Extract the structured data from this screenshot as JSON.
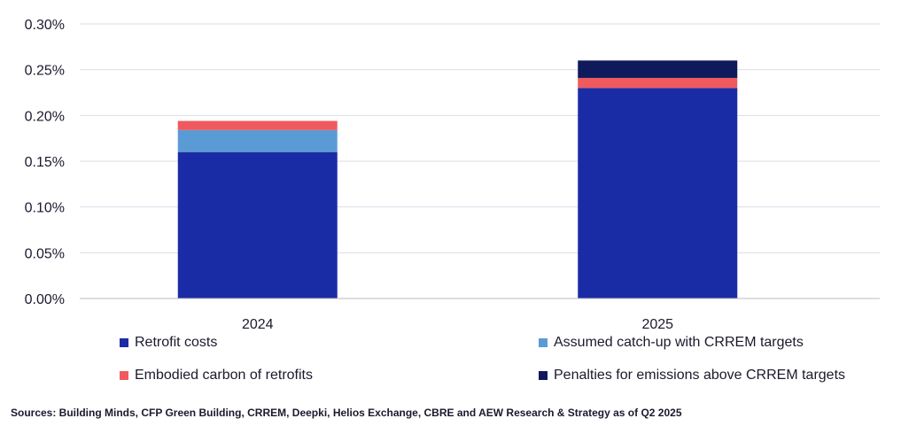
{
  "chart_data": {
    "type": "bar",
    "stacked": true,
    "categories": [
      "2024",
      "2025"
    ],
    "series": [
      {
        "name": "Retrofit costs",
        "values": [
          0.16,
          0.23
        ],
        "color": "#1a2ca5"
      },
      {
        "name": "Assumed catch-up with CRREM targets",
        "values": [
          0.024,
          0.0
        ],
        "color": "#5b9bd5"
      },
      {
        "name": "Embodied carbon of retrofits",
        "values": [
          0.01,
          0.011
        ],
        "color": "#ef5a5f"
      },
      {
        "name": "Penalties for emissions above CRREM targets",
        "values": [
          0.0,
          0.019
        ],
        "color": "#0e1a5c"
      }
    ],
    "ylim": [
      0,
      0.3
    ],
    "yticks": [
      0.0,
      0.05,
      0.1,
      0.15,
      0.2,
      0.25,
      0.3
    ],
    "ytick_labels": [
      "0.00%",
      "0.05%",
      "0.10%",
      "0.15%",
      "0.20%",
      "0.25%",
      "0.30%"
    ],
    "grid": true,
    "legend_position": "bottom"
  },
  "source_text": "Sources: Building Minds, CFP Green Building, CRREM, Deepki, Helios Exchange, CBRE and AEW Research & Strategy as of Q2 2025",
  "colors": {
    "grid": "#d9dde8",
    "axis": "#b8bdc9",
    "text": "#1a1a2e"
  }
}
